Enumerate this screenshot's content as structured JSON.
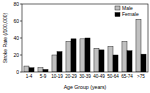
{
  "chart_data": {
    "type": "bar",
    "x_label": "Age Group (years)",
    "y_label": "Stroke Rate (/100,000)",
    "categories": [
      "1-4",
      "5-9",
      "10-19",
      "20-29",
      "30-39",
      "40-49",
      "50-64",
      "65-74",
      ">75"
    ],
    "series": [
      {
        "name": "Male",
        "color": "#c0c0c0",
        "values": [
          7,
          5,
          20,
          36,
          39,
          28,
          30,
          36,
          62
        ]
      },
      {
        "name": "Female",
        "color": "#000000",
        "values": [
          5,
          3,
          24,
          39,
          40,
          26,
          20,
          25,
          21
        ]
      }
    ],
    "ylim": [
      0,
      80
    ],
    "yticks": [
      0,
      20,
      40,
      60,
      80
    ],
    "legend": "upper right",
    "grid": false
  }
}
